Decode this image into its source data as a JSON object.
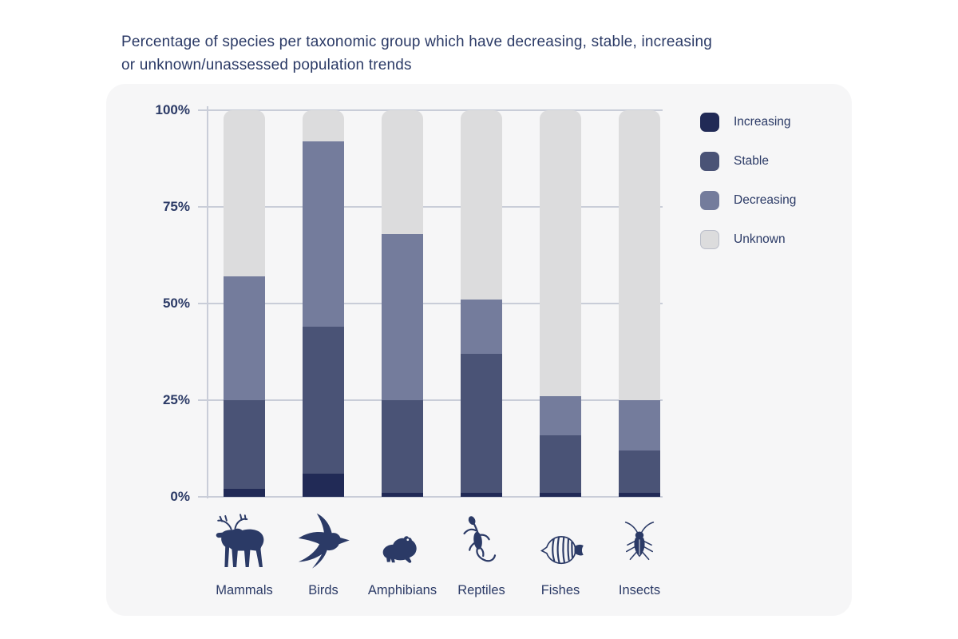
{
  "title": {
    "line1": "Percentage of species per taxonomic group which have decreasing, stable, increasing",
    "line2": "or unknown/unassessed population trends"
  },
  "colors": {
    "increasing": "#212a56",
    "stable": "#4a5376",
    "decreasing": "#747c9c",
    "unknown": "#dcdcdd",
    "unknown_border": "#b9bdc9",
    "text": "#2b3a66",
    "grid": "#c9cdd8",
    "card_bg": "#f6f6f7"
  },
  "y_axis": {
    "ticks": [
      "100%",
      "75%",
      "50%",
      "25%",
      "0%"
    ]
  },
  "legend": {
    "items": [
      {
        "label": "Increasing",
        "key": "increasing"
      },
      {
        "label": "Stable",
        "key": "stable"
      },
      {
        "label": "Decreasing",
        "key": "decreasing"
      },
      {
        "label": "Unknown",
        "key": "unknown"
      }
    ]
  },
  "chart_data": {
    "type": "bar",
    "stacked": true,
    "title": "Percentage of species per taxonomic group which have decreasing, stable, increasing or unknown/unassessed population trends",
    "categories": [
      "Mammals",
      "Birds",
      "Amphibians",
      "Reptiles",
      "Fishes",
      "Insects"
    ],
    "category_icons": [
      "moose-icon",
      "swallow-icon",
      "frog-icon",
      "lizard-icon",
      "butterflyfish-icon",
      "cockroach-icon"
    ],
    "series": [
      {
        "name": "Increasing",
        "key": "increasing",
        "values": [
          2,
          6,
          1,
          1,
          1,
          1
        ]
      },
      {
        "name": "Stable",
        "key": "stable",
        "values": [
          23,
          38,
          24,
          36,
          15,
          11
        ]
      },
      {
        "name": "Decreasing",
        "key": "decreasing",
        "values": [
          32,
          48,
          43,
          14,
          10,
          13
        ]
      },
      {
        "name": "Unknown",
        "key": "unknown",
        "values": [
          43,
          8,
          32,
          49,
          74,
          75
        ]
      }
    ],
    "xlabel": "",
    "ylabel": "",
    "ylim": [
      0,
      100
    ],
    "grid": true,
    "legend_position": "right"
  }
}
